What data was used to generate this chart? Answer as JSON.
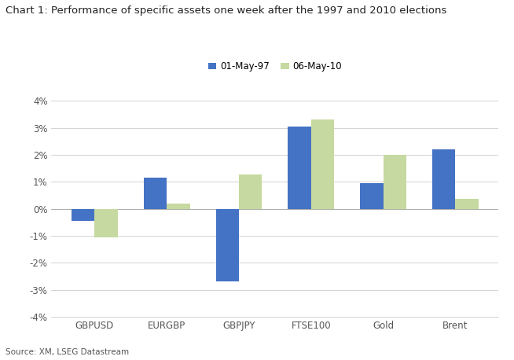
{
  "title": "Chart 1: Performance of specific assets one week after the 1997 and 2010 elections",
  "categories": [
    "GBPUSD",
    "EURGBP",
    "GBPJPY",
    "FTSE100",
    "Gold",
    "Brent"
  ],
  "series": [
    {
      "label": "01-May-97",
      "color": "#4472C4",
      "values": [
        -0.45,
        1.15,
        -2.7,
        3.05,
        0.95,
        2.2
      ]
    },
    {
      "label": "06-May-10",
      "color": "#C6D9A0",
      "values": [
        -1.05,
        0.18,
        1.28,
        3.3,
        2.0,
        0.38
      ]
    }
  ],
  "ylim": [
    -4.0,
    4.0
  ],
  "yticks": [
    -4,
    -3,
    -2,
    -1,
    0,
    1,
    2,
    3,
    4
  ],
  "source": "Source: XM, LSEG Datastream",
  "background_color": "#ffffff",
  "bar_width": 0.32,
  "title_fontsize": 9.5,
  "tick_fontsize": 8.5,
  "legend_fontsize": 8.5,
  "source_fontsize": 7.5
}
